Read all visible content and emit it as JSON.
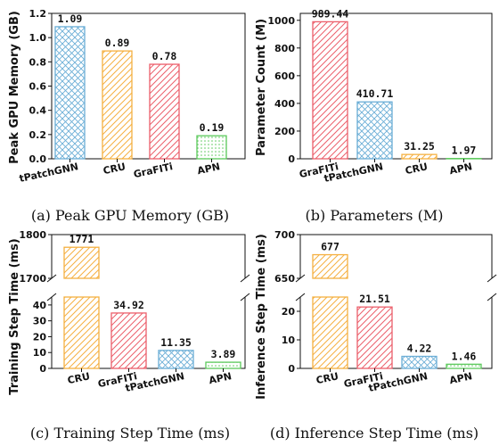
{
  "colors": {
    "tPatchGNN": "#6baed6",
    "CRU": "#f5b041",
    "GraFITi": "#ec5f6b",
    "APN": "#5cc95c"
  },
  "patterns": {
    "tPatchGNN": "crosshatch",
    "CRU": "diagonal",
    "GraFITi": "diagonal",
    "APN": "dots"
  },
  "chart_data": [
    {
      "type": "bar",
      "caption": "(a) Peak GPU Memory (GB)",
      "ylabel": "Peak GPU Memory (GB)",
      "categories": [
        "tPatchGNN",
        "CRU",
        "GraFITi",
        "APN"
      ],
      "values": [
        1.09,
        0.89,
        0.78,
        0.19
      ],
      "value_labels": [
        "1.09",
        "0.89",
        "0.78",
        "0.19"
      ],
      "ylim": [
        0,
        1.2
      ],
      "yticks": [
        0,
        0.2,
        0.4,
        0.6,
        0.8,
        1.0,
        1.2
      ],
      "ytick_labels": [
        "0.0",
        "0.2",
        "0.4",
        "0.6",
        "0.8",
        "1.0",
        "1.2"
      ],
      "grid": false
    },
    {
      "type": "bar",
      "caption": "(b) Parameters (M)",
      "ylabel": "Parameter Count (M)",
      "categories": [
        "GraFITi",
        "tPatchGNN",
        "CRU",
        "APN"
      ],
      "values": [
        989.44,
        410.71,
        31.25,
        1.97
      ],
      "value_labels": [
        "989.44",
        "410.71",
        "31.25",
        "1.97"
      ],
      "ylim": [
        0,
        1050
      ],
      "yticks": [
        0,
        200,
        400,
        600,
        800,
        1000
      ],
      "ytick_labels": [
        "0",
        "200",
        "400",
        "600",
        "800",
        "1000"
      ],
      "grid": false
    },
    {
      "type": "bar",
      "caption": "(c) Training Step Time (ms)",
      "ylabel": "Training Step Time (ms)",
      "categories": [
        "CRU",
        "GraFITi",
        "tPatchGNN",
        "APN"
      ],
      "values": [
        1771,
        34.92,
        11.35,
        3.89
      ],
      "value_labels": [
        "1771",
        "34.92",
        "11.35",
        "3.89"
      ],
      "broken_axis": true,
      "upper_ylim": [
        1700,
        1800
      ],
      "upper_yticks": [
        1700,
        1800
      ],
      "lower_ylim": [
        0,
        45
      ],
      "lower_yticks": [
        0,
        10,
        20,
        30,
        40
      ],
      "grid": false
    },
    {
      "type": "bar",
      "caption": "(d) Inference Step Time (ms)",
      "ylabel": "Inference Step Time (ms)",
      "categories": [
        "CRU",
        "GraFITi",
        "tPatchGNN",
        "APN"
      ],
      "values": [
        677,
        21.51,
        4.22,
        1.46
      ],
      "value_labels": [
        "677",
        "21.51",
        "4.22",
        "1.46"
      ],
      "broken_axis": true,
      "upper_ylim": [
        650,
        700
      ],
      "upper_yticks": [
        650,
        700
      ],
      "lower_ylim": [
        0,
        25
      ],
      "lower_yticks": [
        0,
        10,
        20
      ],
      "grid": false
    }
  ]
}
